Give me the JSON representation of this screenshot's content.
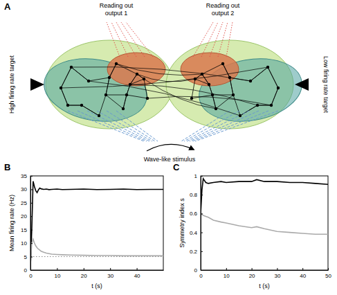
{
  "panel_letters": [
    "A",
    "B",
    "C"
  ],
  "diagram": {
    "readout_1": [
      "Reading out",
      "output 1"
    ],
    "readout_2": [
      "Reading out",
      "output 2"
    ],
    "left_target": "High firing rate target",
    "right_target": "Low firing rate target",
    "stimulus": "Wave-like stimulus"
  },
  "chart_data": [
    {
      "type": "line",
      "xlabel": "t (s)",
      "ylabel": "Mean firing rate (Hz)",
      "x": [
        0,
        0.5,
        1,
        1.5,
        2,
        2.5,
        3,
        3.5,
        4,
        5,
        6,
        7,
        8,
        10,
        12,
        15,
        20,
        25,
        30,
        35,
        40,
        45,
        50
      ],
      "series": [
        {
          "color": "#000000",
          "line_style": "solid",
          "values": [
            2,
            15,
            33,
            31,
            29.5,
            28.8,
            29.8,
            30.5,
            30.2,
            30,
            30.1,
            29.9,
            30,
            30.1,
            29.9,
            30,
            30.1,
            29.9,
            30,
            30.1,
            29.9,
            30,
            30
          ]
        },
        {
          "color": "#aaaaaa",
          "line_style": "solid",
          "values": [
            2,
            10,
            11.5,
            10,
            9,
            8.3,
            7.8,
            7.4,
            7,
            6.6,
            6.3,
            6.1,
            5.9,
            5.8,
            5.7,
            5.6,
            5.5,
            5.4,
            5.4,
            5.3,
            5.3,
            5.3,
            5.3
          ]
        },
        {
          "color": "#888888",
          "line_style": "dotted",
          "values": [
            5,
            5,
            5,
            5,
            5,
            5,
            5,
            5,
            5,
            5,
            5,
            5,
            5,
            5,
            5,
            5,
            5,
            5,
            5,
            5,
            5,
            5,
            5
          ]
        }
      ],
      "xlim": [
        0,
        50
      ],
      "xticks": [
        0,
        10,
        20,
        30,
        40
      ],
      "ylim": [
        0,
        35
      ],
      "yticks": [
        0,
        5,
        10,
        15,
        20,
        25,
        30,
        35
      ]
    },
    {
      "type": "line",
      "xlabel": "t (s)",
      "ylabel": "Symmetry index s",
      "x": [
        0,
        0.5,
        1,
        2,
        3,
        5,
        8,
        10,
        15,
        20,
        22,
        25,
        30,
        35,
        40,
        45,
        50
      ],
      "series": [
        {
          "color": "#000000",
          "line_style": "solid",
          "values": [
            0.6,
            0.85,
            0.97,
            0.93,
            0.92,
            0.93,
            0.94,
            0.93,
            0.94,
            0.94,
            0.96,
            0.94,
            0.94,
            0.93,
            0.93,
            0.92,
            0.91
          ]
        },
        {
          "color": "#aaaaaa",
          "line_style": "solid",
          "values": [
            0.6,
            0.59,
            0.58,
            0.57,
            0.56,
            0.53,
            0.51,
            0.5,
            0.47,
            0.45,
            0.46,
            0.44,
            0.41,
            0.4,
            0.39,
            0.38,
            0.38
          ]
        }
      ],
      "xlim": [
        0,
        50
      ],
      "xticks": [
        0,
        10,
        20,
        30,
        40,
        50
      ],
      "ylim": [
        0,
        1
      ],
      "yticks": [
        0,
        0.2,
        0.4,
        0.6,
        0.8,
        1
      ]
    }
  ]
}
